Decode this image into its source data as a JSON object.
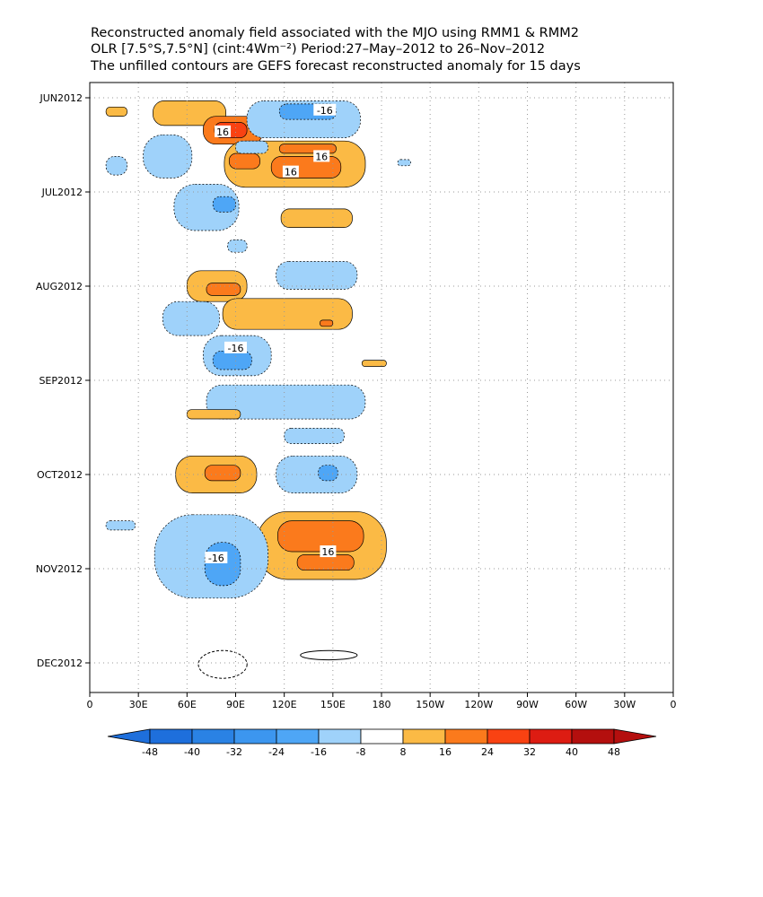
{
  "title_lines": [
    "Reconstructed anomaly field associated with the MJO using RMM1 & RMM2",
    "OLR [7.5°S,7.5°N] (cint:4Wm⁻²) Period:27–May–2012 to 26–Nov–2012",
    "The unfilled contours are GEFS forecast reconstructed anomaly for 15 days"
  ],
  "colors": {
    "cool": [
      "#1e6fdc",
      "#2a82e4",
      "#3c96ef",
      "#4ea6f6",
      "#9fd2fa"
    ],
    "neutral": "#ffffff",
    "warm": [
      "#fbba45",
      "#fb7a1c",
      "#f94212",
      "#dd1c12",
      "#b40f0e"
    ],
    "palette": {
      "c3": "#4ea6f6",
      "c2": "#9fd2fa",
      "w2": "#fbba45",
      "w3": "#fb7a1c",
      "w4": "#f94212"
    }
  },
  "chart_data": {
    "type": "heatmap",
    "xaxis": {
      "ticks": [
        "0",
        "30E",
        "60E",
        "90E",
        "120E",
        "150E",
        "180",
        "150W",
        "120W",
        "90W",
        "60W",
        "30W",
        "0"
      ],
      "range_deg_east": [
        0,
        360
      ]
    },
    "yaxis": {
      "ticks": [
        "JUN2012",
        "JUL2012",
        "AUG2012",
        "SEP2012",
        "OCT2012",
        "NOV2012",
        "DEC2012"
      ],
      "direction": "time increases downward"
    },
    "colorbar": {
      "labels": [
        "-48",
        "-40",
        "-32",
        "-24",
        "-16",
        "-8",
        "8",
        "16",
        "24",
        "32",
        "40",
        "48"
      ]
    },
    "contour_labels": [
      {
        "text": "-16",
        "lon": 145,
        "date": "2012-06-05"
      },
      {
        "text": "16",
        "lon": 82,
        "date": "2012-06-12"
      },
      {
        "text": "16",
        "lon": 143,
        "date": "2012-06-20"
      },
      {
        "text": "16",
        "lon": 124,
        "date": "2012-06-25"
      },
      {
        "text": "-16",
        "lon": 90,
        "date": "2012-08-21"
      },
      {
        "text": "-16",
        "lon": 78,
        "date": "2012-10-28"
      },
      {
        "text": "16",
        "lon": 147,
        "date": "2012-10-26"
      }
    ],
    "anomaly_regions": [
      {
        "level": "w2",
        "lon": [
          39,
          84
        ],
        "date": [
          "2012-06-02",
          "2012-06-10"
        ]
      },
      {
        "level": "w3",
        "lon": [
          70,
          107
        ],
        "date": [
          "2012-06-07",
          "2012-06-16"
        ]
      },
      {
        "level": "w4",
        "lon": [
          77,
          97
        ],
        "date": [
          "2012-06-09",
          "2012-06-14"
        ]
      },
      {
        "level": "w2",
        "lon": [
          83,
          170
        ],
        "date": [
          "2012-06-15",
          "2012-06-30"
        ]
      },
      {
        "level": "w3",
        "lon": [
          112,
          155
        ],
        "date": [
          "2012-06-20",
          "2012-06-27"
        ]
      },
      {
        "level": "w3",
        "lon": [
          117,
          152
        ],
        "date": [
          "2012-06-16",
          "2012-06-19"
        ]
      },
      {
        "level": "w3",
        "lon": [
          86,
          105
        ],
        "date": [
          "2012-06-19",
          "2012-06-24"
        ]
      },
      {
        "level": "w2",
        "lon": [
          10,
          23
        ],
        "date": [
          "2012-06-04",
          "2012-06-07"
        ]
      },
      {
        "level": "c2",
        "lon": [
          97,
          167
        ],
        "date": [
          "2012-06-02",
          "2012-06-14"
        ]
      },
      {
        "level": "c3",
        "lon": [
          117,
          152
        ],
        "date": [
          "2012-06-03",
          "2012-06-08"
        ]
      },
      {
        "level": "c2",
        "lon": [
          33,
          63
        ],
        "date": [
          "2012-06-13",
          "2012-06-27"
        ]
      },
      {
        "level": "c2",
        "lon": [
          10,
          23
        ],
        "date": [
          "2012-06-20",
          "2012-06-26"
        ]
      },
      {
        "level": "c2",
        "lon": [
          190,
          198
        ],
        "date": [
          "2012-06-21",
          "2012-06-23"
        ]
      },
      {
        "level": "c2",
        "lon": [
          90,
          110
        ],
        "date": [
          "2012-06-15",
          "2012-06-19"
        ]
      },
      {
        "level": "c2",
        "lon": [
          52,
          92
        ],
        "date": [
          "2012-06-29",
          "2012-07-14"
        ]
      },
      {
        "level": "c3",
        "lon": [
          76,
          90
        ],
        "date": [
          "2012-07-03",
          "2012-07-08"
        ]
      },
      {
        "level": "w2",
        "lon": [
          118,
          162
        ],
        "date": [
          "2012-07-07",
          "2012-07-13"
        ]
      },
      {
        "level": "c2",
        "lon": [
          85,
          97
        ],
        "date": [
          "2012-07-17",
          "2012-07-21"
        ]
      },
      {
        "level": "c2",
        "lon": [
          115,
          165
        ],
        "date": [
          "2012-07-24",
          "2012-08-02"
        ]
      },
      {
        "level": "w2",
        "lon": [
          60,
          97
        ],
        "date": [
          "2012-07-27",
          "2012-08-06"
        ]
      },
      {
        "level": "w3",
        "lon": [
          72,
          93
        ],
        "date": [
          "2012-07-31",
          "2012-08-04"
        ]
      },
      {
        "level": "w2",
        "lon": [
          82,
          162
        ],
        "date": [
          "2012-08-05",
          "2012-08-15"
        ]
      },
      {
        "level": "w3",
        "lon": [
          142,
          150
        ],
        "date": [
          "2012-08-12",
          "2012-08-14"
        ]
      },
      {
        "level": "c2",
        "lon": [
          45,
          80
        ],
        "date": [
          "2012-08-06",
          "2012-08-17"
        ]
      },
      {
        "level": "c2",
        "lon": [
          70,
          112
        ],
        "date": [
          "2012-08-17",
          "2012-08-30"
        ]
      },
      {
        "level": "c3",
        "lon": [
          76,
          100
        ],
        "date": [
          "2012-08-22",
          "2012-08-28"
        ]
      },
      {
        "level": "w2",
        "lon": [
          168,
          183
        ],
        "date": [
          "2012-08-25",
          "2012-08-27"
        ]
      },
      {
        "level": "c2",
        "lon": [
          72,
          170
        ],
        "date": [
          "2012-09-02",
          "2012-09-13"
        ]
      },
      {
        "level": "w2",
        "lon": [
          60,
          93
        ],
        "date": [
          "2012-09-10",
          "2012-09-13"
        ]
      },
      {
        "level": "c2",
        "lon": [
          120,
          157
        ],
        "date": [
          "2012-09-16",
          "2012-09-21"
        ]
      },
      {
        "level": "w2",
        "lon": [
          53,
          103
        ],
        "date": [
          "2012-09-25",
          "2012-10-07"
        ]
      },
      {
        "level": "w3",
        "lon": [
          71,
          93
        ],
        "date": [
          "2012-09-28",
          "2012-10-03"
        ]
      },
      {
        "level": "c2",
        "lon": [
          115,
          165
        ],
        "date": [
          "2012-09-25",
          "2012-10-07"
        ]
      },
      {
        "level": "c3",
        "lon": [
          141,
          153
        ],
        "date": [
          "2012-09-28",
          "2012-10-03"
        ]
      },
      {
        "level": "w2",
        "lon": [
          103,
          183
        ],
        "date": [
          "2012-10-13",
          "2012-11-04"
        ]
      },
      {
        "level": "w3",
        "lon": [
          116,
          169
        ],
        "date": [
          "2012-10-16",
          "2012-10-26"
        ]
      },
      {
        "level": "w3",
        "lon": [
          128,
          163
        ],
        "date": [
          "2012-10-27",
          "2012-11-01"
        ]
      },
      {
        "level": "c2",
        "lon": [
          40,
          110
        ],
        "date": [
          "2012-10-14",
          "2012-11-10"
        ]
      },
      {
        "level": "c3",
        "lon": [
          71,
          93
        ],
        "date": [
          "2012-10-23",
          "2012-11-06"
        ]
      },
      {
        "level": "c2",
        "lon": [
          10,
          28
        ],
        "date": [
          "2012-10-16",
          "2012-10-19"
        ]
      }
    ],
    "forecast_contours": [
      {
        "lon": [
          67,
          97
        ],
        "date": [
          "2012-11-27",
          "2012-12-06"
        ],
        "note": "dashed"
      },
      {
        "lon": [
          130,
          165
        ],
        "date": [
          "2012-11-27",
          "2012-11-30"
        ],
        "note": "solid"
      }
    ]
  }
}
